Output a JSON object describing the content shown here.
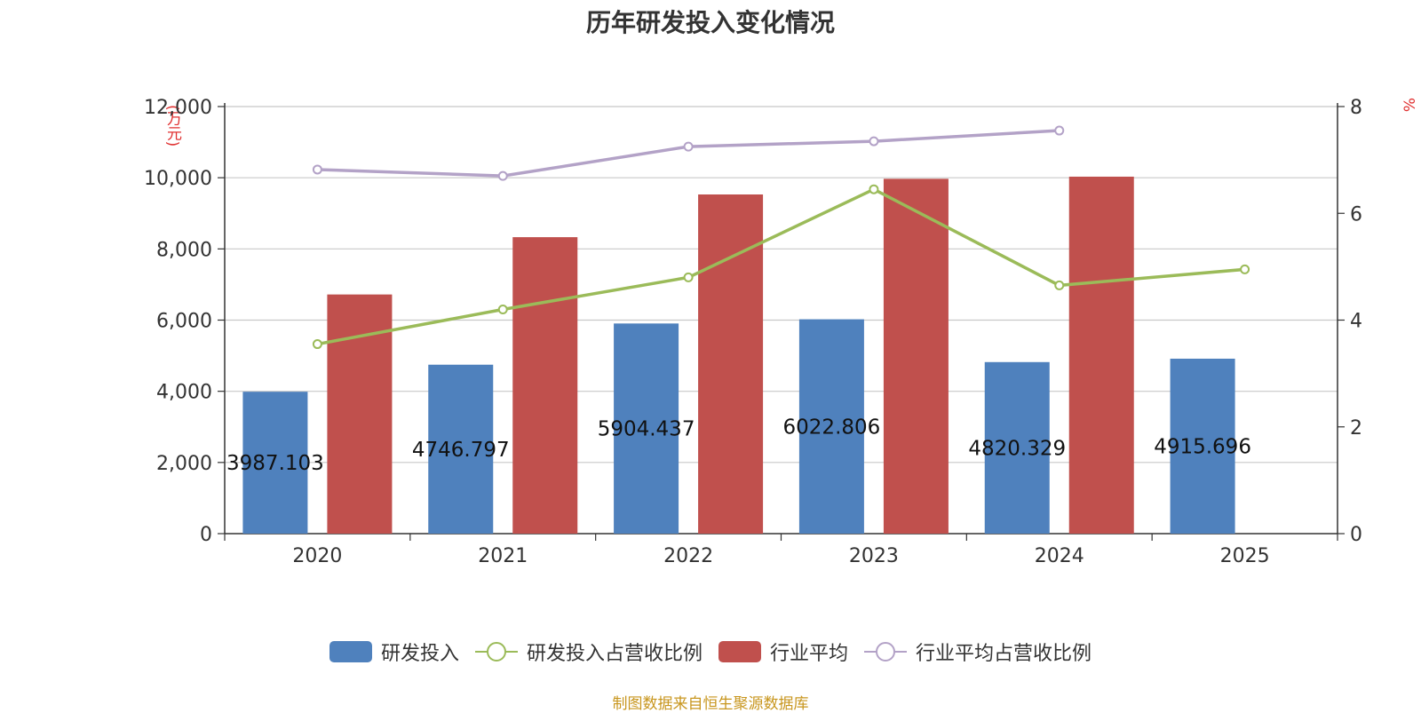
{
  "chart_data": {
    "type": "bar",
    "title": "历年研发投入变化情况",
    "y_left_label": "(万元)",
    "y_right_label": "%",
    "categories": [
      "2020",
      "2021",
      "2022",
      "2023",
      "2024",
      "2025"
    ],
    "y_left_ticks": [
      "0",
      "2,000",
      "4,000",
      "6,000",
      "8,000",
      "10,000",
      "12,000"
    ],
    "y_right_ticks": [
      "0",
      "2",
      "4",
      "6",
      "8"
    ],
    "ylim_left": [
      0,
      12000
    ],
    "ylim_right": [
      0,
      8
    ],
    "grid": true,
    "legend_position": "bottom",
    "series": [
      {
        "name": "研发投入",
        "type": "bar",
        "axis": "left",
        "color": "#4f81bd",
        "values": [
          3987.103,
          4746.797,
          5904.437,
          6022.806,
          4820.329,
          4915.696
        ],
        "labels": [
          "3987.103",
          "4746.797",
          "5904.437",
          "6022.806",
          "4820.329",
          "4915.696"
        ]
      },
      {
        "name": "研发投入占营收比例",
        "type": "line",
        "axis": "right",
        "color": "#9bbb59",
        "values": [
          3.55,
          4.2,
          4.8,
          6.45,
          4.65,
          4.95
        ]
      },
      {
        "name": "行业平均",
        "type": "bar",
        "axis": "left",
        "color": "#c0504d",
        "values": [
          6720,
          8330,
          9530,
          9970,
          10030,
          null
        ]
      },
      {
        "name": "行业平均占营收比例",
        "type": "line",
        "axis": "right",
        "color": "#b3a2c7",
        "values": [
          6.82,
          6.7,
          7.25,
          7.35,
          7.55,
          null
        ]
      }
    ]
  },
  "footer": "制图数据来自恒生聚源数据库"
}
